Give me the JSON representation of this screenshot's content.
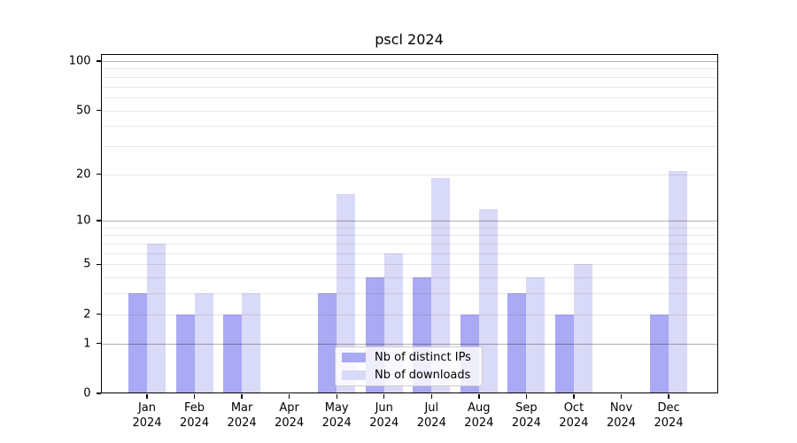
{
  "title": "pscl 2024",
  "chart_data": {
    "type": "bar",
    "title": "pscl 2024",
    "categories": [
      "Jan",
      "Feb",
      "Mar",
      "Apr",
      "May",
      "Jun",
      "Jul",
      "Aug",
      "Sep",
      "Oct",
      "Nov",
      "Dec"
    ],
    "category_year": "2024",
    "series": [
      {
        "name": "Nb of distinct IPs",
        "color": "#a9a9f4",
        "values": [
          3,
          2,
          2,
          0,
          3,
          4,
          4,
          2,
          3,
          2,
          0,
          2
        ]
      },
      {
        "name": "Nb of downloads",
        "color": "#d9d9f8",
        "values": [
          7,
          3,
          3,
          0,
          15,
          6,
          19,
          12,
          4,
          5,
          0,
          21
        ]
      }
    ],
    "yscale": "log10(1+value)",
    "ylim": [
      0,
      115
    ],
    "yticks": [
      0,
      1,
      2,
      5,
      10,
      20,
      50,
      100
    ],
    "major_gridlines": [
      1,
      10,
      100
    ],
    "minor_gridlines": [
      2,
      3,
      4,
      5,
      6,
      7,
      8,
      9,
      20,
      30,
      40,
      50,
      60,
      70,
      80,
      90
    ],
    "grid": true,
    "legend_position": "lower center"
  }
}
